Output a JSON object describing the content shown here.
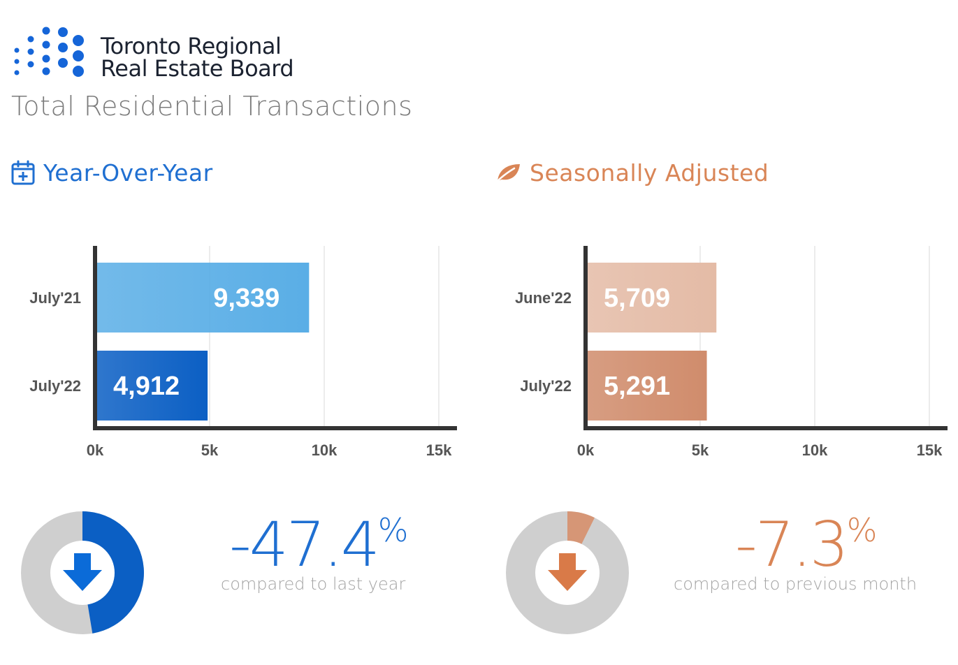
{
  "brand": {
    "name_line1": "Toronto Regional",
    "name_line2": "Real Estate Board",
    "dot_color": "#1565d8"
  },
  "page_title": "Total Residential Transactions",
  "sections": {
    "yoy": {
      "title": "Year-Over-Year",
      "icon": "calendar-plus-icon",
      "color": "#1f6fd1"
    },
    "sa": {
      "title": "Seasonally Adjusted",
      "icon": "leaf-icon",
      "color": "#d98556"
    }
  },
  "chart_data": [
    {
      "type": "bar",
      "orientation": "horizontal",
      "categories": [
        "July'21",
        "July'22"
      ],
      "values": [
        9339,
        4912
      ],
      "value_labels": [
        "9,339",
        "4,912"
      ],
      "colors": [
        "#5aaee6",
        "#0b5fc4"
      ],
      "xlim": [
        0,
        15000
      ],
      "x_ticks": [
        "0k",
        "5k",
        "10k",
        "15k"
      ],
      "grid": true
    },
    {
      "type": "bar",
      "orientation": "horizontal",
      "categories": [
        "June'22",
        "July'22"
      ],
      "values": [
        5709,
        5291
      ],
      "value_labels": [
        "5,709",
        "5,291"
      ],
      "colors": [
        "#e4bba6",
        "#d08c6c"
      ],
      "xlim": [
        0,
        15000
      ],
      "x_ticks": [
        "0k",
        "5k",
        "10k",
        "15k"
      ],
      "grid": true
    }
  ],
  "stats": {
    "yoy": {
      "value": "-47.4",
      "unit": "%",
      "caption": "compared to last year",
      "fraction": 0.474,
      "color": "#0b5fc4",
      "arrow_color": "#0b6bd8"
    },
    "sa": {
      "value": "-7.3",
      "unit": "%",
      "caption": "compared to previous month",
      "fraction": 0.073,
      "color": "#d69676",
      "arrow_color": "#d97a48"
    }
  }
}
